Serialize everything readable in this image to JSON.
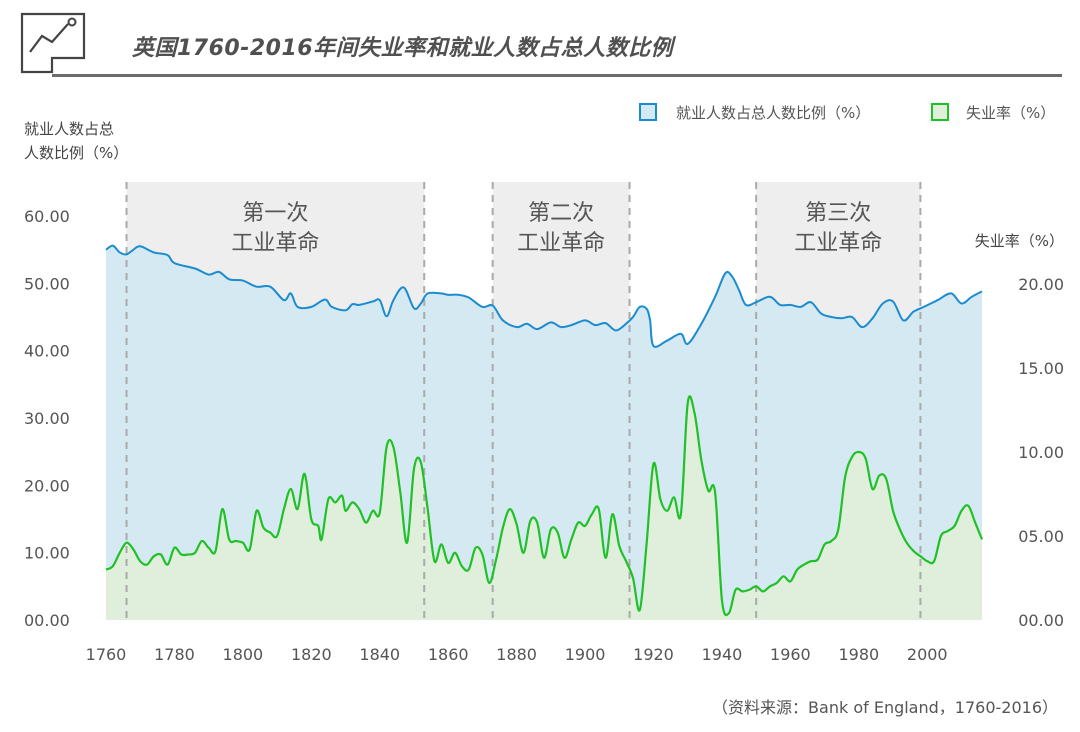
{
  "chart_data": {
    "type": "area",
    "title": "英国1760-2016年间失业率和就业人数占总人数比例",
    "left_axis_label_line1": "就业人数占总",
    "left_axis_label_line2": "人数比例（%）",
    "right_axis_label": "失业率（%）",
    "source": "（资料来源：Bank of England，1760-2016）",
    "x_ticks": [
      "1760",
      "1780",
      "1800",
      "1820",
      "1840",
      "1860",
      "1880",
      "1900",
      "1920",
      "1940",
      "1960",
      "1980",
      "2000"
    ],
    "x_range": [
      1760,
      2016
    ],
    "left_ticks": [
      "00.00",
      "10.00",
      "20.00",
      "30.00",
      "40.00",
      "50.00",
      "60.00"
    ],
    "left_range": [
      0,
      60
    ],
    "right_ticks": [
      "00.00",
      "05.00",
      "10.00",
      "15.00",
      "20.00"
    ],
    "right_range": [
      0,
      20
    ],
    "legend": {
      "employment": "就业人数占总人数比例（%）",
      "unemployment": "失业率（%）"
    },
    "colors": {
      "employment_line": "#1a8ccf",
      "employment_fill": "#d5e9f2",
      "unemployment_line": "#1fc127",
      "unemployment_fill": "#dfefdc",
      "band": "#eeeeee",
      "divider": "#aaaaaa"
    },
    "periods": [
      {
        "label_line1": "第一次",
        "label_line2": "工业革命",
        "start": 1766,
        "end": 1853
      },
      {
        "label_line1": "第二次",
        "label_line2": "工业革命",
        "start": 1873,
        "end": 1913
      },
      {
        "label_line1": "第三次",
        "label_line2": "工业革命",
        "start": 1950,
        "end": 1998
      }
    ],
    "series": [
      {
        "name": "就业人数占总人数比例（%）",
        "axis": "left",
        "points": [
          [
            1760,
            55
          ],
          [
            1762,
            55.6
          ],
          [
            1764,
            54.6
          ],
          [
            1766,
            54.3
          ],
          [
            1768,
            55.0
          ],
          [
            1770,
            55.5
          ],
          [
            1774,
            54.6
          ],
          [
            1778,
            54.2
          ],
          [
            1780,
            53.0
          ],
          [
            1786,
            52.2
          ],
          [
            1790,
            51.3
          ],
          [
            1793,
            51.7
          ],
          [
            1796,
            50.6
          ],
          [
            1800,
            50.4
          ],
          [
            1804,
            49.5
          ],
          [
            1808,
            49.5
          ],
          [
            1812,
            47.5
          ],
          [
            1814,
            48.5
          ],
          [
            1816,
            46.5
          ],
          [
            1820,
            46.5
          ],
          [
            1824,
            47.6
          ],
          [
            1826,
            46.5
          ],
          [
            1830,
            46.0
          ],
          [
            1832,
            46.9
          ],
          [
            1834,
            46.8
          ],
          [
            1838,
            47.3
          ],
          [
            1840,
            47.5
          ],
          [
            1842,
            45.1
          ],
          [
            1844,
            47.5
          ],
          [
            1847,
            49.4
          ],
          [
            1850,
            46.3
          ],
          [
            1852,
            47.0
          ],
          [
            1854,
            48.5
          ],
          [
            1858,
            48.5
          ],
          [
            1860,
            48.3
          ],
          [
            1863,
            48.3
          ],
          [
            1866,
            47.9
          ],
          [
            1870,
            46.5
          ],
          [
            1873,
            46.7
          ],
          [
            1876,
            44.5
          ],
          [
            1880,
            43.5
          ],
          [
            1883,
            44.0
          ],
          [
            1886,
            43.2
          ],
          [
            1890,
            44.2
          ],
          [
            1893,
            43.5
          ],
          [
            1896,
            43.8
          ],
          [
            1900,
            44.5
          ],
          [
            1903,
            43.8
          ],
          [
            1906,
            44.1
          ],
          [
            1909,
            43.0
          ],
          [
            1912,
            44.0
          ],
          [
            1914,
            45.0
          ],
          [
            1916,
            46.5
          ],
          [
            1918,
            46.2
          ],
          [
            1919,
            44.5
          ],
          [
            1920,
            40.7
          ],
          [
            1924,
            41.5
          ],
          [
            1928,
            42.5
          ],
          [
            1930,
            41.0
          ],
          [
            1934,
            44.0
          ],
          [
            1938,
            48.0
          ],
          [
            1941,
            51.5
          ],
          [
            1943,
            51.0
          ],
          [
            1945,
            49.0
          ],
          [
            1947,
            46.8
          ],
          [
            1950,
            47.2
          ],
          [
            1954,
            48.0
          ],
          [
            1957,
            46.8
          ],
          [
            1960,
            46.8
          ],
          [
            1963,
            46.5
          ],
          [
            1966,
            47.2
          ],
          [
            1969,
            45.5
          ],
          [
            1972,
            45.0
          ],
          [
            1975,
            44.8
          ],
          [
            1978,
            45.0
          ],
          [
            1981,
            43.5
          ],
          [
            1984,
            44.8
          ],
          [
            1987,
            47.0
          ],
          [
            1990,
            47.3
          ],
          [
            1993,
            44.5
          ],
          [
            1996,
            45.8
          ],
          [
            1999,
            46.5
          ],
          [
            2003,
            47.5
          ],
          [
            2007,
            48.5
          ],
          [
            2010,
            47.0
          ],
          [
            2013,
            48.0
          ],
          [
            2016,
            48.8
          ]
        ]
      },
      {
        "name": "失业率（%）",
        "axis": "right",
        "points": [
          [
            1760,
            3.0
          ],
          [
            1762,
            3.2
          ],
          [
            1764,
            4.0
          ],
          [
            1766,
            4.6
          ],
          [
            1768,
            4.2
          ],
          [
            1770,
            3.5
          ],
          [
            1772,
            3.3
          ],
          [
            1774,
            3.8
          ],
          [
            1776,
            3.9
          ],
          [
            1778,
            3.3
          ],
          [
            1780,
            4.3
          ],
          [
            1782,
            3.9
          ],
          [
            1784,
            3.9
          ],
          [
            1786,
            4.0
          ],
          [
            1788,
            4.7
          ],
          [
            1790,
            4.3
          ],
          [
            1792,
            4.1
          ],
          [
            1794,
            6.6
          ],
          [
            1796,
            4.8
          ],
          [
            1798,
            4.7
          ],
          [
            1800,
            4.6
          ],
          [
            1802,
            4.2
          ],
          [
            1804,
            6.5
          ],
          [
            1806,
            5.5
          ],
          [
            1808,
            5.2
          ],
          [
            1810,
            5.0
          ],
          [
            1812,
            6.6
          ],
          [
            1814,
            7.8
          ],
          [
            1816,
            6.6
          ],
          [
            1818,
            8.7
          ],
          [
            1820,
            6.0
          ],
          [
            1822,
            5.6
          ],
          [
            1823,
            4.8
          ],
          [
            1825,
            7.2
          ],
          [
            1827,
            7.0
          ],
          [
            1829,
            7.4
          ],
          [
            1830,
            6.5
          ],
          [
            1832,
            7.0
          ],
          [
            1834,
            6.6
          ],
          [
            1836,
            5.8
          ],
          [
            1838,
            6.5
          ],
          [
            1840,
            6.4
          ],
          [
            1842,
            10.3
          ],
          [
            1844,
            10.3
          ],
          [
            1846,
            7.6
          ],
          [
            1848,
            4.6
          ],
          [
            1850,
            9.0
          ],
          [
            1852,
            9.4
          ],
          [
            1854,
            6.6
          ],
          [
            1856,
            3.5
          ],
          [
            1858,
            4.5
          ],
          [
            1860,
            3.4
          ],
          [
            1862,
            4.0
          ],
          [
            1864,
            3.2
          ],
          [
            1866,
            3.0
          ],
          [
            1868,
            4.3
          ],
          [
            1870,
            3.9
          ],
          [
            1872,
            2.2
          ],
          [
            1874,
            3.6
          ],
          [
            1876,
            5.5
          ],
          [
            1878,
            6.6
          ],
          [
            1880,
            5.7
          ],
          [
            1882,
            4.0
          ],
          [
            1884,
            5.9
          ],
          [
            1886,
            5.8
          ],
          [
            1888,
            3.7
          ],
          [
            1890,
            5.4
          ],
          [
            1892,
            5.2
          ],
          [
            1894,
            3.7
          ],
          [
            1896,
            4.8
          ],
          [
            1898,
            5.8
          ],
          [
            1900,
            5.6
          ],
          [
            1902,
            6.3
          ],
          [
            1904,
            6.6
          ],
          [
            1906,
            3.7
          ],
          [
            1908,
            6.3
          ],
          [
            1910,
            4.4
          ],
          [
            1912,
            3.5
          ],
          [
            1914,
            2.5
          ],
          [
            1916,
            0.6
          ],
          [
            1918,
            4.6
          ],
          [
            1920,
            9.3
          ],
          [
            1922,
            7.2
          ],
          [
            1924,
            6.5
          ],
          [
            1926,
            7.3
          ],
          [
            1928,
            6.3
          ],
          [
            1930,
            12.9
          ],
          [
            1932,
            12.3
          ],
          [
            1934,
            9.5
          ],
          [
            1936,
            7.7
          ],
          [
            1938,
            7.6
          ],
          [
            1940,
            1.2
          ],
          [
            1942,
            0.4
          ],
          [
            1944,
            1.8
          ],
          [
            1946,
            1.7
          ],
          [
            1948,
            1.8
          ],
          [
            1950,
            2.0
          ],
          [
            1952,
            1.7
          ],
          [
            1954,
            2.0
          ],
          [
            1956,
            2.2
          ],
          [
            1958,
            2.6
          ],
          [
            1960,
            2.3
          ],
          [
            1962,
            3.0
          ],
          [
            1964,
            3.3
          ],
          [
            1966,
            3.5
          ],
          [
            1968,
            3.6
          ],
          [
            1970,
            4.5
          ],
          [
            1972,
            4.7
          ],
          [
            1974,
            5.4
          ],
          [
            1976,
            8.5
          ],
          [
            1978,
            9.7
          ],
          [
            1980,
            10.0
          ],
          [
            1982,
            9.6
          ],
          [
            1984,
            7.8
          ],
          [
            1986,
            8.6
          ],
          [
            1988,
            8.4
          ],
          [
            1990,
            6.5
          ],
          [
            1992,
            5.4
          ],
          [
            1994,
            4.6
          ],
          [
            1996,
            4.1
          ],
          [
            1998,
            3.8
          ],
          [
            2000,
            3.5
          ],
          [
            2002,
            3.5
          ],
          [
            2004,
            5.0
          ],
          [
            2006,
            5.3
          ],
          [
            2008,
            5.6
          ],
          [
            2010,
            6.5
          ],
          [
            2012,
            6.8
          ],
          [
            2014,
            5.8
          ],
          [
            2016,
            4.8
          ]
        ]
      }
    ]
  }
}
